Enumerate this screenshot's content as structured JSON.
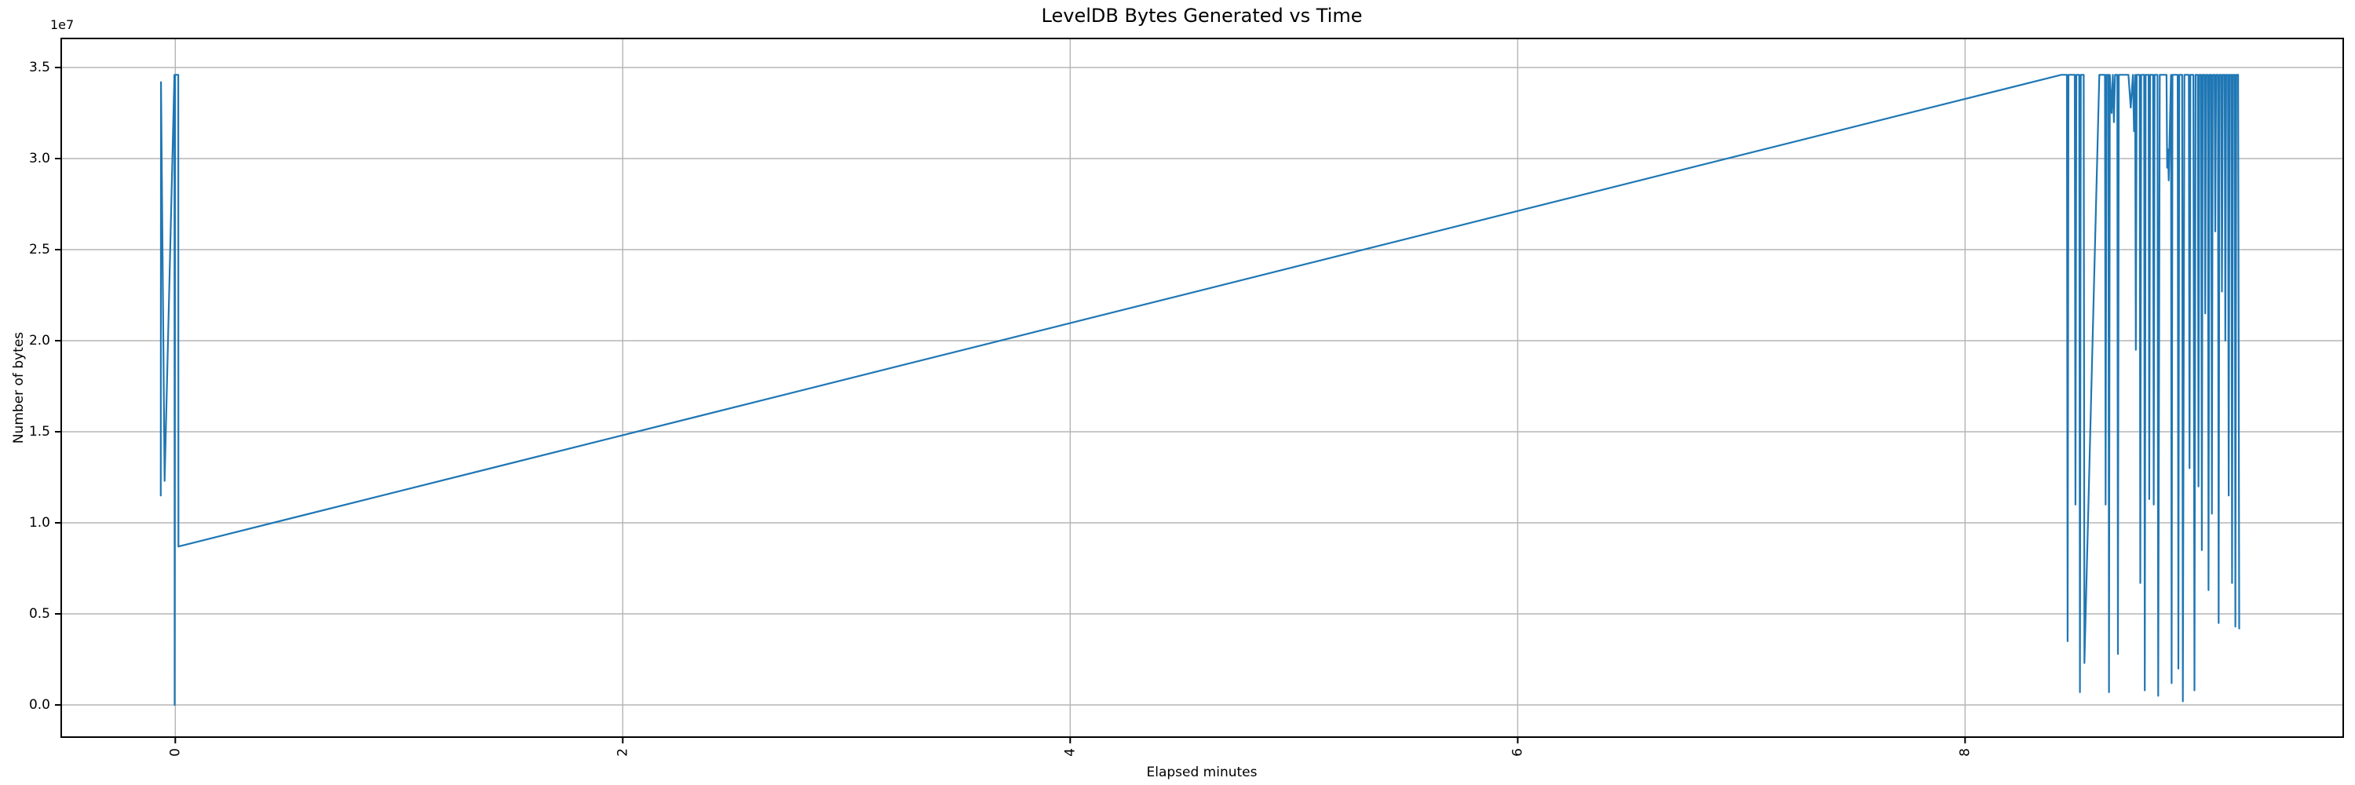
{
  "figure": {
    "title": "LevelDB Bytes Generated vs Time",
    "xlabel": "Elapsed minutes",
    "ylabel": "Number of bytes",
    "offset_text": "1e7"
  },
  "chart_data": {
    "type": "line",
    "title": "LevelDB Bytes Generated vs Time",
    "xlabel": "Elapsed minutes",
    "ylabel": "Number of bytes",
    "y_offset_text": "1e7",
    "legend": "none",
    "grid": true,
    "grid_color": "#b5b5b5",
    "line_color": "#1f77b4",
    "spine_color": "#000000",
    "xlim": [
      -0.51,
      9.69
    ],
    "ylim": [
      -1767000,
      36595000
    ],
    "xticks": {
      "values": [
        0,
        2,
        4,
        6,
        8
      ],
      "labels": [
        "0",
        "2",
        "4",
        "6",
        "8"
      ],
      "rotation": 90
    },
    "yticks": {
      "values": [
        0,
        5000000,
        10000000,
        15000000,
        20000000,
        25000000,
        30000000,
        35000000
      ],
      "labels": [
        "0.0",
        "0.5",
        "1.0",
        "1.5",
        "2.0",
        "2.5",
        "3.0",
        "3.5"
      ]
    },
    "points": [
      [
        -0.065,
        11500000
      ],
      [
        -0.064,
        34200000
      ],
      [
        -0.048,
        12300000
      ],
      [
        -0.004,
        34600000
      ],
      [
        -0.003,
        0
      ],
      [
        -0.001,
        34600000
      ],
      [
        0.013,
        34600000
      ],
      [
        0.014,
        8700000
      ],
      [
        8.43,
        34600000
      ],
      [
        8.455,
        34600000
      ],
      [
        8.458,
        3500000
      ],
      [
        8.462,
        34600000
      ],
      [
        8.49,
        34600000
      ],
      [
        8.493,
        11000000
      ],
      [
        8.497,
        34600000
      ],
      [
        8.51,
        34600000
      ],
      [
        8.513,
        700000
      ],
      [
        8.517,
        34600000
      ],
      [
        8.53,
        34600000
      ],
      [
        8.533,
        2300000
      ],
      [
        8.6,
        34600000
      ],
      [
        8.625,
        34600000
      ],
      [
        8.628,
        11000000
      ],
      [
        8.632,
        34600000
      ],
      [
        8.64,
        34600000
      ],
      [
        8.643,
        700000
      ],
      [
        8.647,
        34600000
      ],
      [
        8.655,
        32500000
      ],
      [
        8.66,
        34600000
      ],
      [
        8.665,
        32000000
      ],
      [
        8.67,
        34600000
      ],
      [
        8.68,
        34600000
      ],
      [
        8.683,
        2800000
      ],
      [
        8.687,
        34600000
      ],
      [
        8.73,
        34600000
      ],
      [
        8.74,
        32800000
      ],
      [
        8.75,
        34600000
      ],
      [
        8.755,
        31500000
      ],
      [
        8.76,
        34600000
      ],
      [
        8.763,
        19500000
      ],
      [
        8.767,
        34600000
      ],
      [
        8.78,
        34600000
      ],
      [
        8.783,
        6700000
      ],
      [
        8.787,
        34600000
      ],
      [
        8.8,
        34600000
      ],
      [
        8.803,
        800000
      ],
      [
        8.807,
        34600000
      ],
      [
        8.82,
        34600000
      ],
      [
        8.823,
        11300000
      ],
      [
        8.827,
        34600000
      ],
      [
        8.84,
        34600000
      ],
      [
        8.843,
        11000000
      ],
      [
        8.847,
        34600000
      ],
      [
        8.86,
        34600000
      ],
      [
        8.863,
        500000
      ],
      [
        8.87,
        34600000
      ],
      [
        8.9,
        34600000
      ],
      [
        8.903,
        29500000
      ],
      [
        8.907,
        30500000
      ],
      [
        8.91,
        28800000
      ],
      [
        8.92,
        34600000
      ],
      [
        8.923,
        1200000
      ],
      [
        8.927,
        34600000
      ],
      [
        8.95,
        34600000
      ],
      [
        8.953,
        2000000
      ],
      [
        8.957,
        34600000
      ],
      [
        8.97,
        34600000
      ],
      [
        8.973,
        200000
      ],
      [
        8.98,
        34600000
      ],
      [
        9.0,
        34600000
      ],
      [
        9.003,
        13000000
      ],
      [
        9.007,
        34600000
      ],
      [
        9.02,
        34600000
      ],
      [
        9.025,
        800000
      ],
      [
        9.03,
        34600000
      ],
      [
        9.04,
        34600000
      ],
      [
        9.043,
        12000000
      ],
      [
        9.047,
        34600000
      ],
      [
        9.055,
        34600000
      ],
      [
        9.058,
        8500000
      ],
      [
        9.062,
        34600000
      ],
      [
        9.07,
        34600000
      ],
      [
        9.073,
        21500000
      ],
      [
        9.077,
        34600000
      ],
      [
        9.085,
        34600000
      ],
      [
        9.088,
        6300000
      ],
      [
        9.092,
        34600000
      ],
      [
        9.1,
        34600000
      ],
      [
        9.103,
        10500000
      ],
      [
        9.107,
        34600000
      ],
      [
        9.115,
        34600000
      ],
      [
        9.118,
        26000000
      ],
      [
        9.122,
        34600000
      ],
      [
        9.13,
        34600000
      ],
      [
        9.133,
        4500000
      ],
      [
        9.137,
        34600000
      ],
      [
        9.145,
        34600000
      ],
      [
        9.148,
        22700000
      ],
      [
        9.152,
        34600000
      ],
      [
        9.16,
        34600000
      ],
      [
        9.163,
        20000000
      ],
      [
        9.167,
        34600000
      ],
      [
        9.175,
        34600000
      ],
      [
        9.178,
        11500000
      ],
      [
        9.182,
        34600000
      ],
      [
        9.19,
        34600000
      ],
      [
        9.193,
        6700000
      ],
      [
        9.197,
        34600000
      ],
      [
        9.205,
        34600000
      ],
      [
        9.208,
        4300000
      ],
      [
        9.212,
        34600000
      ],
      [
        9.22,
        34600000
      ],
      [
        9.225,
        4200000
      ]
    ]
  }
}
